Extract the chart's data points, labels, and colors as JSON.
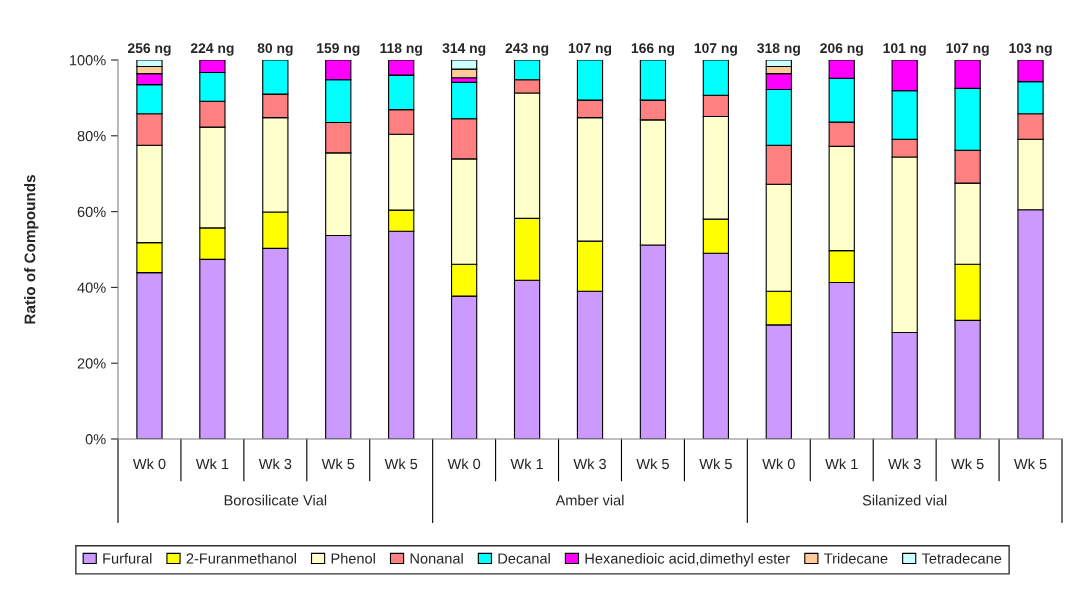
{
  "chart_data": {
    "type": "bar",
    "stacked": true,
    "ylabel": "Ratio of Compounds",
    "categories": [
      "Wk 0",
      "Wk 1",
      "Wk 3",
      "Wk 5",
      "Wk 5",
      "Wk 0",
      "Wk 1",
      "Wk 3",
      "Wk 5",
      "Wk 5",
      "Wk 0",
      "Wk 1",
      "Wk 3",
      "Wk 5",
      "Wk 5"
    ],
    "annotations": [
      "Borosilicate Vial",
      "Amber vial",
      "Silanized vial",
      "256 ng",
      "224 ng",
      "80 ng",
      "159 ng",
      "118 ng",
      "314 ng",
      "243 ng",
      "107 ng",
      "166 ng",
      "107 ng",
      "318 ng",
      "206 ng",
      "101 ng",
      "107 ng",
      "103 ng"
    ],
    "series": [
      {
        "name": "Furfural",
        "color": "#cc99ff",
        "values": [
          43.9,
          47.4,
          50.3,
          53.7,
          54.8,
          37.7,
          41.9,
          39.0,
          51.2,
          49.0,
          30.1,
          41.3,
          28.1,
          31.3,
          60.5
        ]
      },
      {
        "name": "2-Furanmethanol",
        "color": "#ffff00",
        "values": [
          7.9,
          8.3,
          9.6,
          null,
          5.6,
          8.4,
          16.3,
          13.2,
          null,
          9.0,
          8.9,
          8.4,
          null,
          14.8,
          null
        ]
      },
      {
        "name": "Phenol",
        "color": "#ffffcc",
        "values": [
          25.7,
          26.6,
          24.9,
          21.8,
          20.0,
          27.8,
          33.1,
          32.6,
          33.0,
          27.1,
          28.2,
          27.5,
          46.3,
          21.4,
          18.6
        ]
      },
      {
        "name": "Nonanal",
        "color": "#ff8080",
        "values": [
          8.3,
          6.8,
          6.2,
          8.0,
          6.5,
          10.6,
          3.5,
          4.6,
          5.2,
          5.6,
          10.3,
          6.4,
          4.7,
          8.7,
          6.7
        ]
      },
      {
        "name": "Decanal",
        "color": "#00ffff",
        "values": [
          7.7,
          7.6,
          9.0,
          11.3,
          9.1,
          9.6,
          5.2,
          10.6,
          10.6,
          9.3,
          14.7,
          11.6,
          12.8,
          16.3,
          8.5
        ]
      },
      {
        "name": "Hexanedioic acid,dimethyl ester",
        "color": "#ff00ff",
        "values": [
          2.9,
          3.3,
          null,
          5.2,
          4.0,
          1.2,
          null,
          null,
          null,
          null,
          4.2,
          4.8,
          8.1,
          7.5,
          5.7
        ]
      },
      {
        "name": "Tridecane",
        "color": "#ffcc99",
        "values": [
          1.9,
          null,
          null,
          null,
          null,
          2.3,
          null,
          null,
          null,
          null,
          1.9,
          null,
          null,
          null,
          null
        ]
      },
      {
        "name": "Tetradecane",
        "color": "#ccffff",
        "values": [
          1.7,
          null,
          null,
          null,
          null,
          2.4,
          null,
          null,
          null,
          null,
          1.7,
          null,
          null,
          null,
          null
        ]
      }
    ],
    "ylim": [
      0,
      100
    ],
    "yticks": [
      {
        "value": 0,
        "label": "0%"
      },
      {
        "value": 20,
        "label": "20%"
      },
      {
        "value": 40,
        "label": "40%"
      },
      {
        "value": 60,
        "label": "60%"
      },
      {
        "value": 80,
        "label": "80%"
      },
      {
        "value": 100,
        "label": "100%"
      }
    ],
    "legend": "bottom",
    "grid": false
  }
}
